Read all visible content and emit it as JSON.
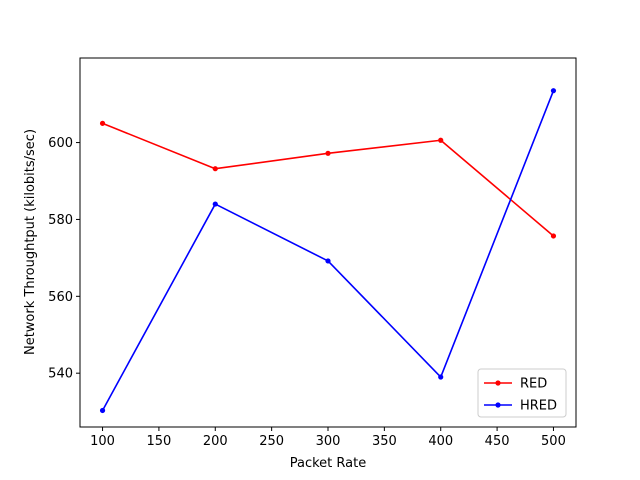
{
  "chart_data": {
    "type": "line",
    "title": "",
    "xlabel": "Packet Rate",
    "ylabel": "Network Throughtput (kilobits/sec)",
    "x": [
      100,
      200,
      300,
      400,
      500
    ],
    "xlim": [
      80,
      520
    ],
    "ylim": [
      526,
      622
    ],
    "xticks": [
      100,
      150,
      200,
      250,
      300,
      350,
      400,
      450,
      500
    ],
    "yticks": [
      540,
      560,
      580,
      600
    ],
    "grid": false,
    "legend_position": "lower-right",
    "series": [
      {
        "name": "RED",
        "color": "#ff0000",
        "values": [
          605,
          593.2,
          597.2,
          600.6,
          575.7
        ]
      },
      {
        "name": "HRED",
        "color": "#0000ff",
        "values": [
          530.3,
          584,
          569.2,
          539,
          613.5
        ]
      }
    ]
  }
}
